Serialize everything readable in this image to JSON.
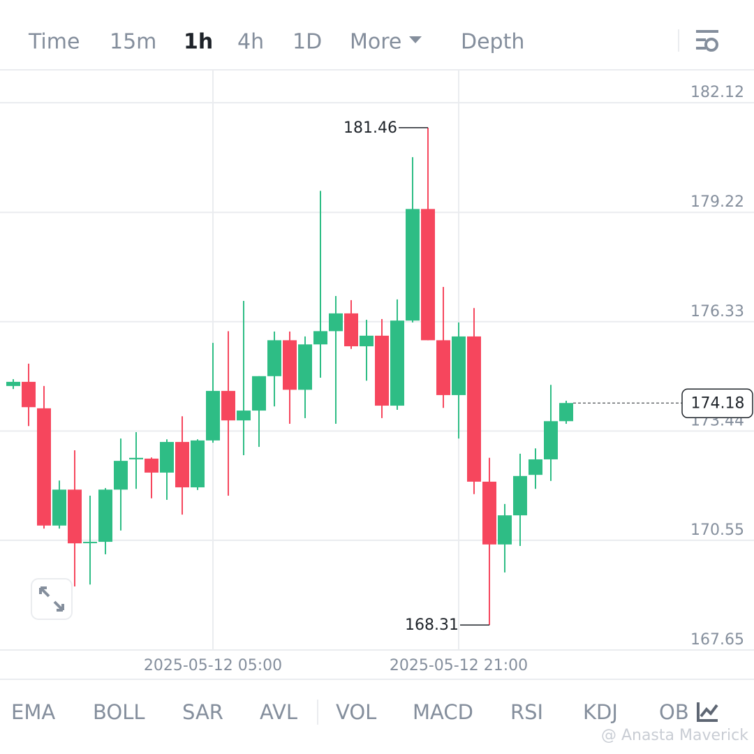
{
  "tabs": [
    "Time",
    "15m",
    "1h",
    "4h",
    "1D",
    "More",
    "Depth"
  ],
  "active_tab": 2,
  "indicators": [
    "EMA",
    "BOLL",
    "SAR",
    "AVL",
    "VOL",
    "MACD",
    "RSI",
    "KDJ",
    "OB"
  ],
  "watermark": "@ Anasta Maverick",
  "chart_data": {
    "type": "candlestick",
    "categories": [
      null,
      null,
      null,
      null,
      null,
      null,
      null,
      null,
      null,
      null,
      null,
      null,
      null,
      "2025-05-12 05:00",
      null,
      null,
      null,
      null,
      null,
      null,
      null,
      null,
      null,
      null,
      null,
      null,
      null,
      null,
      null,
      "2025-05-12 21:00",
      null,
      null,
      null,
      null,
      null,
      null,
      null
    ],
    "open": [
      174.63,
      174.74,
      174.04,
      170.94,
      171.89,
      170.51,
      170.51,
      171.89,
      172.69,
      172.71,
      172.34,
      173.15,
      171.95,
      173.19,
      174.5,
      173.72,
      173.98,
      174.89,
      175.84,
      174.53,
      175.73,
      176.08,
      176.55,
      175.68,
      175.96,
      174.11,
      176.36,
      179.31,
      175.84,
      174.39,
      175.94,
      172.1,
      170.44,
      171.21,
      172.28,
      172.69,
      173.7
    ],
    "high": [
      174.81,
      175.22,
      174.63,
      172.13,
      172.93,
      171.73,
      171.93,
      173.24,
      173.41,
      172.74,
      173.22,
      173.83,
      173.22,
      175.77,
      176.08,
      176.88,
      174.89,
      176.07,
      176.07,
      175.94,
      179.79,
      177.01,
      176.9,
      176.38,
      176.4,
      176.92,
      180.68,
      181.46,
      177.25,
      176.31,
      176.69,
      172.73,
      171.51,
      172.84,
      172.98,
      174.66,
      174.24
    ],
    "low": [
      174.55,
      173.57,
      170.86,
      170.86,
      169.33,
      169.38,
      170.18,
      170.81,
      171.91,
      171.66,
      171.62,
      171.23,
      171.88,
      173.13,
      171.73,
      172.8,
      173.02,
      174.09,
      173.63,
      173.78,
      174.85,
      173.63,
      175.61,
      174.77,
      173.78,
      174.0,
      176.31,
      175.84,
      174.05,
      173.24,
      171.77,
      168.31,
      169.7,
      170.4,
      171.91,
      172.12,
      173.63
    ],
    "close": [
      174.74,
      174.07,
      170.94,
      171.89,
      170.47,
      170.51,
      171.89,
      172.65,
      172.73,
      172.34,
      173.15,
      171.95,
      173.19,
      174.5,
      173.72,
      173.98,
      174.89,
      175.84,
      174.53,
      175.73,
      176.08,
      176.55,
      175.68,
      175.96,
      174.11,
      176.36,
      179.31,
      175.84,
      174.39,
      175.94,
      172.1,
      170.44,
      171.21,
      172.25,
      172.69,
      173.7,
      174.18
    ],
    "up_color": "#2ebd85",
    "down_color": "#f6465d",
    "ylim": [
      167.65,
      182.99
    ],
    "yticks": [
      182.12,
      179.22,
      176.33,
      173.44,
      170.55,
      167.65
    ],
    "grid": true
  }
}
